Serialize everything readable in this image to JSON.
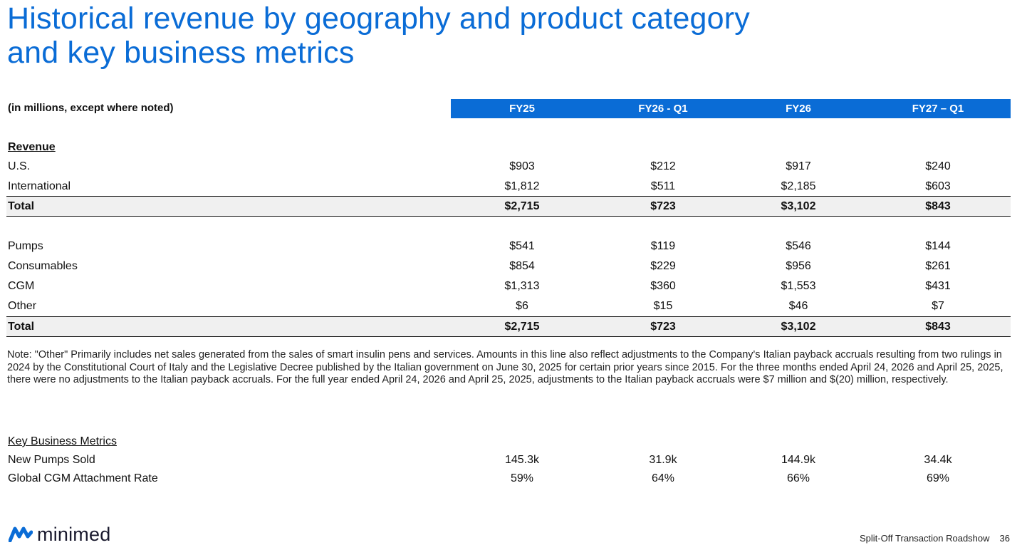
{
  "title": {
    "line1": "Historical revenue by geography and product category",
    "line2": "and key business metrics"
  },
  "table": {
    "unit_label": "(in millions, except where noted)",
    "columns": [
      "FY25",
      "FY26 - Q1",
      "FY26",
      "FY27 – Q1"
    ],
    "revenue_heading": "Revenue",
    "geo_rows": [
      {
        "label": "U.S.",
        "values": [
          "$903",
          "$212",
          "$917",
          "$240"
        ]
      },
      {
        "label": "International",
        "values": [
          "$1,812",
          "$511",
          "$2,185",
          "$603"
        ]
      }
    ],
    "geo_total": {
      "label": "Total",
      "values": [
        "$2,715",
        "$723",
        "$3,102",
        "$843"
      ]
    },
    "product_rows": [
      {
        "label": "Pumps",
        "values": [
          "$541",
          "$119",
          "$546",
          "$144"
        ]
      },
      {
        "label": "Consumables",
        "values": [
          "$854",
          "$229",
          "$956",
          "$261"
        ]
      },
      {
        "label": "CGM",
        "values": [
          "$1,313",
          "$360",
          "$1,553",
          "$431"
        ]
      },
      {
        "label": "Other",
        "values": [
          "$6",
          "$15",
          "$46",
          "$7"
        ]
      }
    ],
    "product_total": {
      "label": "Total",
      "values": [
        "$2,715",
        "$723",
        "$3,102",
        "$843"
      ]
    }
  },
  "note": "Note: \"Other\" Primarily includes net sales generated from the sales of smart insulin pens and services. Amounts in this line also reflect adjustments to the Company's Italian payback accruals resulting from two rulings in 2024 by the Constitutional Court of Italy and the Legislative Decree published by the Italian government on June 30, 2025 for certain prior years since 2015. For the three months ended April 24, 2026 and April 25, 2025, there were no adjustments to the Italian payback accruals. For the full year ended April 24, 2026 and April 25, 2025, adjustments to the Italian payback accruals were $7 million and $(20) million, respectively.",
  "metrics": {
    "heading": "Key Business Metrics",
    "rows": [
      {
        "label": "New Pumps Sold",
        "values": [
          "145.3k",
          "31.9k",
          "144.9k",
          "34.4k"
        ]
      },
      {
        "label": "Global CGM Attachment Rate",
        "values": [
          "59%",
          "64%",
          "66%",
          "69%"
        ]
      }
    ]
  },
  "brand": {
    "name": "minimed",
    "icon": "minimed-logo-icon",
    "color": "#0a6cd6"
  },
  "footer": {
    "text": "Split-Off Transaction Roadshow",
    "page": "36"
  }
}
